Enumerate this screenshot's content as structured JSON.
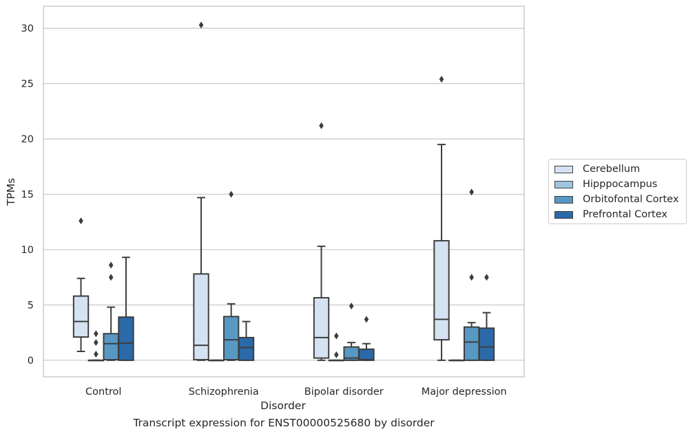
{
  "chart_data": {
    "type": "box",
    "xlabel": "Disorder",
    "ylabel": "TPMs",
    "ylim": [
      -1.5,
      32
    ],
    "yticks": [
      0,
      5,
      10,
      15,
      20,
      25,
      30
    ],
    "categories": [
      "Control",
      "Schizophrenia",
      "Bipolar disorder",
      "Major depression"
    ],
    "series": [
      {
        "name": "Cerebellum",
        "color": "#d4e2f1",
        "boxes": [
          {
            "whislo": 0.8,
            "q1": 2.1,
            "med": 3.5,
            "q3": 5.8,
            "whishi": 7.4,
            "fliers": [
              12.6
            ]
          },
          {
            "whislo": 0.0,
            "q1": 0.05,
            "med": 1.35,
            "q3": 7.8,
            "whishi": 14.7,
            "fliers": [
              30.3
            ]
          },
          {
            "whislo": 0.0,
            "q1": 0.2,
            "med": 2.05,
            "q3": 5.65,
            "whishi": 10.3,
            "fliers": [
              21.2
            ]
          },
          {
            "whislo": 0.0,
            "q1": 1.85,
            "med": 3.7,
            "q3": 10.8,
            "whishi": 19.5,
            "fliers": [
              25.4
            ]
          }
        ]
      },
      {
        "name": "Hipppocampus",
        "color": "#9ec5de",
        "boxes": [
          {
            "whislo": 0.0,
            "q1": 0.0,
            "med": 0.0,
            "q3": 0.0,
            "whishi": 0.0,
            "fliers": [
              0.55,
              1.6,
              2.4
            ]
          },
          {
            "whislo": 0.0,
            "q1": 0.0,
            "med": 0.0,
            "q3": 0.0,
            "whishi": 0.0,
            "fliers": []
          },
          {
            "whislo": 0.0,
            "q1": 0.0,
            "med": 0.0,
            "q3": 0.0,
            "whishi": 0.0,
            "fliers": [
              0.5,
              2.2
            ]
          },
          {
            "whislo": 0.0,
            "q1": 0.0,
            "med": 0.0,
            "q3": 0.0,
            "whishi": 0.0,
            "fliers": []
          }
        ]
      },
      {
        "name": "Orbitofontal Cortex",
        "color": "#5899c4",
        "boxes": [
          {
            "whislo": 0.0,
            "q1": 0.05,
            "med": 1.5,
            "q3": 2.4,
            "whishi": 4.8,
            "fliers": [
              7.5,
              8.6
            ]
          },
          {
            "whislo": 0.0,
            "q1": 0.05,
            "med": 1.85,
            "q3": 3.95,
            "whishi": 5.1,
            "fliers": [
              15.0
            ]
          },
          {
            "whislo": 0.0,
            "q1": 0.0,
            "med": 0.2,
            "q3": 1.2,
            "whishi": 1.6,
            "fliers": [
              4.9
            ]
          },
          {
            "whislo": 0.0,
            "q1": 0.0,
            "med": 1.65,
            "q3": 3.0,
            "whishi": 3.4,
            "fliers": [
              7.5,
              15.2
            ]
          }
        ]
      },
      {
        "name": "Prefrontal Cortex",
        "color": "#2b6aa9",
        "boxes": [
          {
            "whislo": 0.0,
            "q1": 0.0,
            "med": 1.55,
            "q3": 3.9,
            "whishi": 9.3,
            "fliers": []
          },
          {
            "whislo": 0.0,
            "q1": 0.0,
            "med": 1.15,
            "q3": 2.05,
            "whishi": 3.5,
            "fliers": []
          },
          {
            "whislo": 0.0,
            "q1": 0.0,
            "med": 0.05,
            "q3": 1.0,
            "whishi": 1.5,
            "fliers": [
              3.7
            ]
          },
          {
            "whislo": 0.0,
            "q1": 0.0,
            "med": 1.2,
            "q3": 2.9,
            "whishi": 4.3,
            "fliers": [
              7.5
            ]
          }
        ]
      }
    ],
    "grid": "y",
    "legend": "right",
    "caption": "Transcript expression for ENST00000525680 by disorder"
  }
}
